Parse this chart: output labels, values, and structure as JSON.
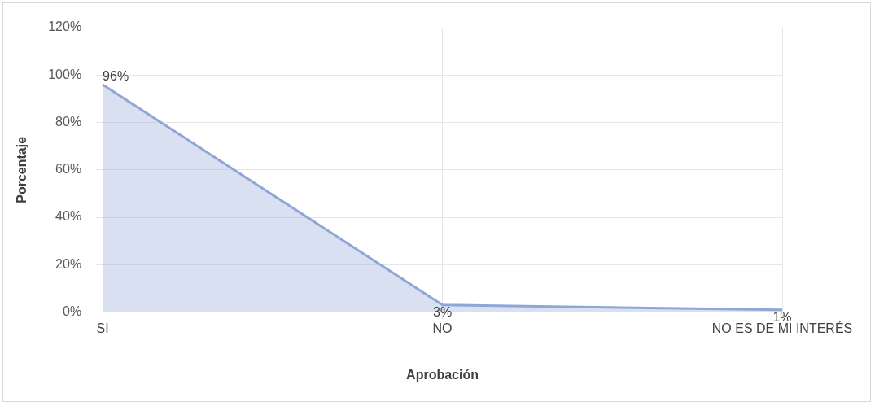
{
  "chart_data": {
    "type": "area",
    "xlabel": "Aprobación",
    "ylabel": "Porcentaje",
    "categories": [
      "SI",
      "NO",
      "NO ES DE MI INTERÉS"
    ],
    "series": [
      {
        "color": "#8fa6d6",
        "values": [
          96,
          3,
          1
        ],
        "value_labels": [
          "96%",
          "3%",
          "1%"
        ]
      }
    ],
    "ylim": [
      0,
      120
    ],
    "yticks": [
      {
        "value": 0,
        "label": "0%"
      },
      {
        "value": 20,
        "label": "20%"
      },
      {
        "value": 40,
        "label": "40%"
      },
      {
        "value": 60,
        "label": "60%"
      },
      {
        "value": 80,
        "label": "80%"
      },
      {
        "value": 100,
        "label": "100%"
      },
      {
        "value": 120,
        "label": "120%"
      }
    ],
    "grid": true,
    "legend": false
  }
}
